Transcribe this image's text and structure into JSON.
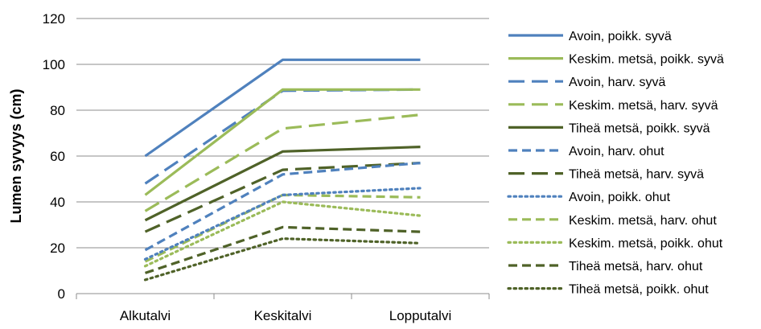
{
  "chart_data": {
    "type": "line",
    "ylabel": "Lumen syvyys (cm)",
    "xlabel": "",
    "categories": [
      "Alkutalvi",
      "Keskitalvi",
      "Lopputalvi"
    ],
    "ylim": [
      0,
      120
    ],
    "yticks": [
      0,
      20,
      40,
      60,
      80,
      100,
      120
    ],
    "grid": true,
    "legend_position": "right",
    "series": [
      {
        "name": "Avoin, poikk. syvä",
        "values": [
          60,
          102,
          102
        ],
        "color": "#4f81bd",
        "dash": "solid"
      },
      {
        "name": "Keskim. metsä, poikk. syvä",
        "values": [
          43,
          89,
          89
        ],
        "color": "#9bbb59",
        "dash": "solid"
      },
      {
        "name": "Avoin, harv. syvä",
        "values": [
          48,
          88.5,
          89
        ],
        "color": "#4f81bd",
        "dash": "longdash"
      },
      {
        "name": "Keskim. metsä, harv. syvä",
        "values": [
          36,
          72,
          78
        ],
        "color": "#9bbb59",
        "dash": "longdash"
      },
      {
        "name": "Tiheä metsä, poikk. syvä",
        "values": [
          32,
          62,
          64
        ],
        "color": "#4f6228",
        "dash": "solid"
      },
      {
        "name": "Avoin, harv. ohut",
        "values": [
          19,
          52,
          57
        ],
        "color": "#4f81bd",
        "dash": "dash"
      },
      {
        "name": "Tiheä metsä, harv. syvä",
        "values": [
          27,
          54,
          57
        ],
        "color": "#4f6228",
        "dash": "longdash"
      },
      {
        "name": "Avoin, poikk. ohut",
        "values": [
          15,
          43,
          46
        ],
        "color": "#4f81bd",
        "dash": "dot"
      },
      {
        "name": "Keskim. metsä, harv. ohut",
        "values": [
          14,
          43,
          42
        ],
        "color": "#9bbb59",
        "dash": "dash"
      },
      {
        "name": "Keskim. metsä, poikk. ohut",
        "values": [
          12,
          40,
          34
        ],
        "color": "#9bbb59",
        "dash": "dot"
      },
      {
        "name": "Tiheä metsä, harv. ohut",
        "values": [
          9,
          29,
          27
        ],
        "color": "#4f6228",
        "dash": "dash"
      },
      {
        "name": "Tiheä metsä, poikk. ohut",
        "values": [
          6,
          24,
          22
        ],
        "color": "#4f6228",
        "dash": "dot"
      }
    ]
  }
}
